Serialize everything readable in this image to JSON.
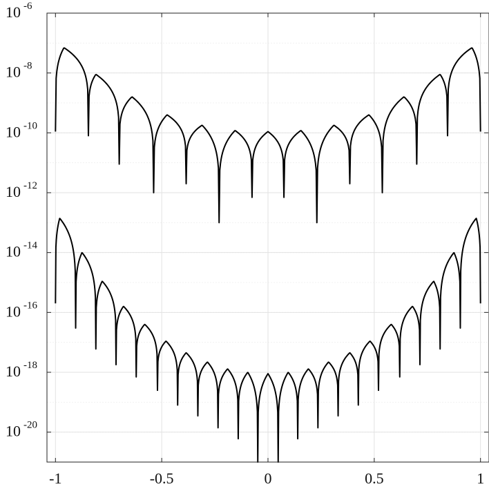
{
  "chart_data": {
    "type": "line",
    "title": "",
    "xlabel": "",
    "ylabel": "",
    "xlim": [
      -1.04,
      1.04
    ],
    "ylim": [
      1e-21,
      1e-06
    ],
    "yscale": "log",
    "grid": true,
    "xticks": [
      -1,
      -0.5,
      0,
      0.5,
      1
    ],
    "xtick_labels": [
      "-1",
      "-0.5",
      "0",
      "0.5",
      "1"
    ],
    "yticks": [
      {
        "base": "10",
        "exp": "-6",
        "value": 1e-06
      },
      {
        "base": "10",
        "exp": "-8",
        "value": 1e-08
      },
      {
        "base": "10",
        "exp": "-10",
        "value": 1e-10
      },
      {
        "base": "10",
        "exp": "-12",
        "value": 1e-12
      },
      {
        "base": "10",
        "exp": "-14",
        "value": 1e-14
      },
      {
        "base": "10",
        "exp": "-16",
        "value": 1e-16
      },
      {
        "base": "10",
        "exp": "-18",
        "value": 1e-18
      },
      {
        "base": "10",
        "exp": "-20",
        "value": 1e-20
      }
    ],
    "line_color": "#000000",
    "series": [
      {
        "peaks": [
          {
            "x": -0.96,
            "y": 7e-08
          },
          {
            "x": -0.81,
            "y": 9e-09
          },
          {
            "x": -0.64,
            "y": 1.6e-09
          },
          {
            "x": -0.475,
            "y": 4e-10
          },
          {
            "x": -0.31,
            "y": 1.8e-10
          },
          {
            "x": -0.155,
            "y": 1.2e-10
          },
          {
            "x": 0.0,
            "y": 1.1e-10
          },
          {
            "x": 0.155,
            "y": 1.2e-10
          },
          {
            "x": 0.31,
            "y": 1.8e-10
          },
          {
            "x": 0.475,
            "y": 4e-10
          },
          {
            "x": 0.64,
            "y": 1.6e-09
          },
          {
            "x": 0.81,
            "y": 9e-09
          },
          {
            "x": 0.96,
            "y": 7e-08
          }
        ],
        "zeros": [
          {
            "x": -1.0,
            "y": 1.1e-10
          },
          {
            "x": -0.845,
            "y": 8e-11
          },
          {
            "x": -0.7,
            "y": 9e-12
          },
          {
            "x": -0.538,
            "y": 1e-12
          },
          {
            "x": -0.385,
            "y": 2e-12
          },
          {
            "x": -0.23,
            "y": 1e-13
          },
          {
            "x": -0.075,
            "y": 7e-13
          },
          {
            "x": 0.075,
            "y": 7e-13
          },
          {
            "x": 0.23,
            "y": 1e-13
          },
          {
            "x": 0.385,
            "y": 2e-12
          },
          {
            "x": 0.538,
            "y": 1e-12
          },
          {
            "x": 0.7,
            "y": 9e-12
          },
          {
            "x": 0.845,
            "y": 8e-11
          },
          {
            "x": 1.0,
            "y": 1.1e-10
          }
        ]
      },
      {
        "peaks": [
          {
            "x": -0.98,
            "y": 1.4e-13
          },
          {
            "x": -0.875,
            "y": 1e-14
          },
          {
            "x": -0.78,
            "y": 1.1e-15
          },
          {
            "x": -0.68,
            "y": 1.6e-16
          },
          {
            "x": -0.58,
            "y": 4e-17
          },
          {
            "x": -0.48,
            "y": 1.1e-17
          },
          {
            "x": -0.385,
            "y": 4.5e-18
          },
          {
            "x": -0.285,
            "y": 2.2e-18
          },
          {
            "x": -0.19,
            "y": 1.3e-18
          },
          {
            "x": -0.095,
            "y": 1e-18
          },
          {
            "x": 0.0,
            "y": 9e-19
          },
          {
            "x": 0.095,
            "y": 1e-18
          },
          {
            "x": 0.19,
            "y": 1.3e-18
          },
          {
            "x": 0.285,
            "y": 2.2e-18
          },
          {
            "x": 0.385,
            "y": 4.5e-18
          },
          {
            "x": 0.48,
            "y": 1.1e-17
          },
          {
            "x": 0.58,
            "y": 4e-17
          },
          {
            "x": 0.68,
            "y": 1.6e-16
          },
          {
            "x": 0.78,
            "y": 1.1e-15
          },
          {
            "x": 0.875,
            "y": 1e-14
          },
          {
            "x": 0.98,
            "y": 1.4e-13
          }
        ],
        "zeros": [
          {
            "x": -1.0,
            "y": 2e-16
          },
          {
            "x": -0.905,
            "y": 3e-17
          },
          {
            "x": -0.81,
            "y": 6e-18
          },
          {
            "x": -0.715,
            "y": 1.8e-18
          },
          {
            "x": -0.62,
            "y": 7e-19
          },
          {
            "x": -0.52,
            "y": 2.5e-19
          },
          {
            "x": -0.425,
            "y": 8e-20
          },
          {
            "x": -0.33,
            "y": 3.5e-20
          },
          {
            "x": -0.235,
            "y": 1.4e-20
          },
          {
            "x": -0.14,
            "y": 6e-21
          },
          {
            "x": -0.048,
            "y": 1e-21
          },
          {
            "x": 0.048,
            "y": 1e-21
          },
          {
            "x": 0.14,
            "y": 6e-21
          },
          {
            "x": 0.235,
            "y": 1.4e-20
          },
          {
            "x": 0.33,
            "y": 3.5e-20
          },
          {
            "x": 0.425,
            "y": 8e-20
          },
          {
            "x": 0.52,
            "y": 2.5e-19
          },
          {
            "x": 0.62,
            "y": 7e-19
          },
          {
            "x": 0.715,
            "y": 1.8e-18
          },
          {
            "x": 0.81,
            "y": 6e-18
          },
          {
            "x": 0.905,
            "y": 3e-17
          },
          {
            "x": 1.0,
            "y": 2e-16
          }
        ]
      }
    ]
  }
}
